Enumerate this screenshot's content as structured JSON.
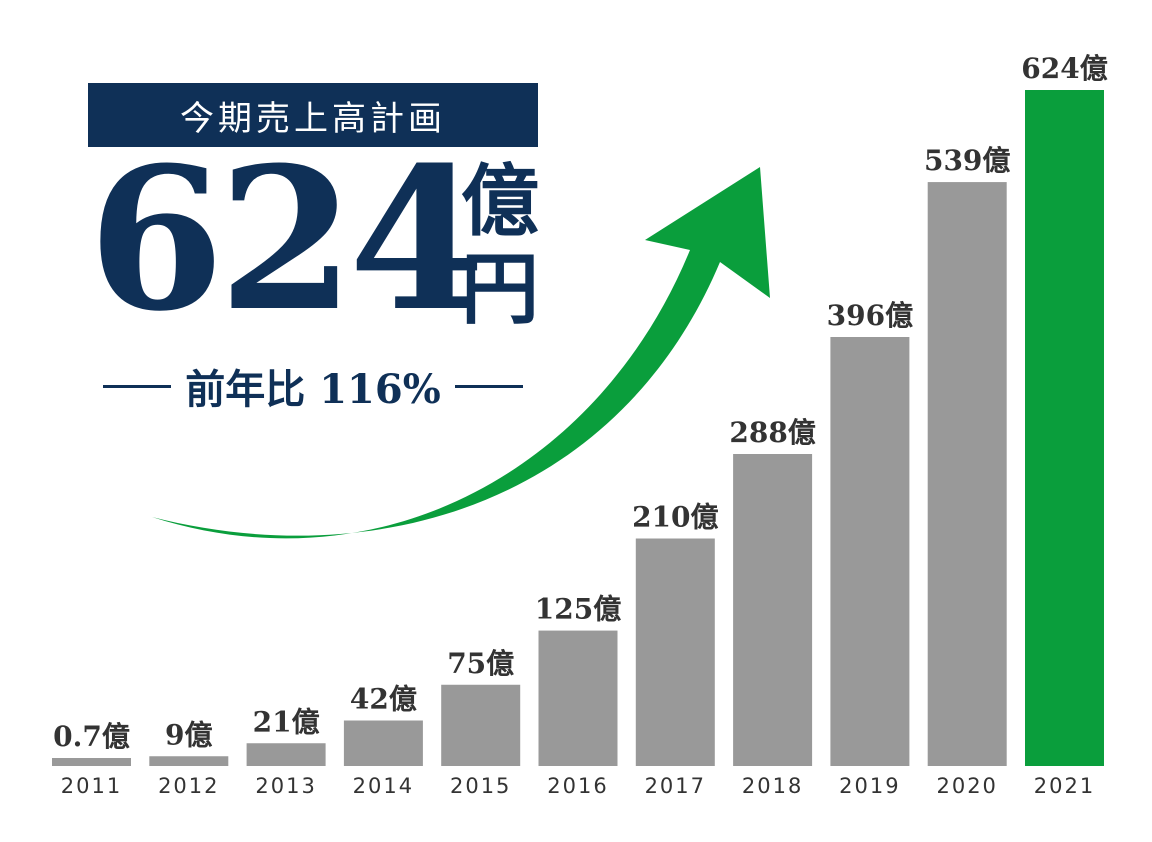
{
  "headline": {
    "label": "今期売上高計画",
    "amount": "624",
    "unit_1": "億",
    "unit_2": "円",
    "yoy": "前年比 116%"
  },
  "colors": {
    "navy": "#0f3057",
    "bar_gray": "#999999",
    "highlight_green": "#0a9e3c",
    "text": "#333333"
  },
  "icons": {
    "trend": "upward-curved-arrow-icon"
  },
  "chart_data": {
    "type": "bar",
    "categories": [
      "2011",
      "2012",
      "2013",
      "2014",
      "2015",
      "2016",
      "2017",
      "2018",
      "2019",
      "2020",
      "2021"
    ],
    "values": [
      0.7,
      9,
      21,
      42,
      75,
      125,
      210,
      288,
      396,
      539,
      624
    ],
    "value_labels": [
      "0.7億",
      "9億",
      "21億",
      "42億",
      "75億",
      "125億",
      "210億",
      "288億",
      "396億",
      "539億",
      "624億"
    ],
    "highlight_index": 10,
    "title": "",
    "xlabel": "",
    "ylabel": "",
    "ylim": [
      0,
      624
    ],
    "grid": false
  }
}
